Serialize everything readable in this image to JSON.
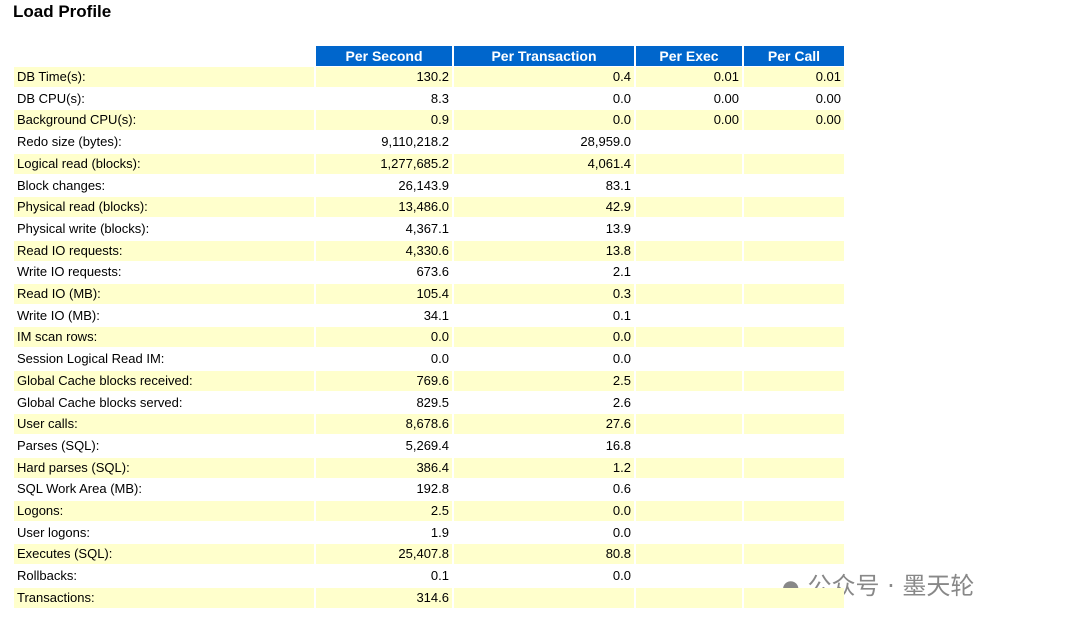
{
  "header": {
    "title": "Load Profile"
  },
  "table": {
    "columns": [
      "Per Second",
      "Per Transaction",
      "Per Exec",
      "Per Call"
    ],
    "rows": [
      {
        "label": "DB Time(s):",
        "values": [
          "130.2",
          "0.4",
          "0.01",
          "0.01"
        ]
      },
      {
        "label": "DB CPU(s):",
        "values": [
          "8.3",
          "0.0",
          "0.00",
          "0.00"
        ]
      },
      {
        "label": "Background CPU(s):",
        "values": [
          "0.9",
          "0.0",
          "0.00",
          "0.00"
        ]
      },
      {
        "label": "Redo size (bytes):",
        "values": [
          "9,110,218.2",
          "28,959.0"
        ]
      },
      {
        "label": "Logical read (blocks):",
        "values": [
          "1,277,685.2",
          "4,061.4"
        ]
      },
      {
        "label": "Block changes:",
        "values": [
          "26,143.9",
          "83.1"
        ]
      },
      {
        "label": "Physical read (blocks):",
        "values": [
          "13,486.0",
          "42.9"
        ]
      },
      {
        "label": "Physical write (blocks):",
        "values": [
          "4,367.1",
          "13.9"
        ]
      },
      {
        "label": "Read IO requests:",
        "values": [
          "4,330.6",
          "13.8"
        ]
      },
      {
        "label": "Write IO requests:",
        "values": [
          "673.6",
          "2.1"
        ]
      },
      {
        "label": "Read IO (MB):",
        "values": [
          "105.4",
          "0.3"
        ]
      },
      {
        "label": "Write IO (MB):",
        "values": [
          "34.1",
          "0.1"
        ]
      },
      {
        "label": "IM scan rows:",
        "values": [
          "0.0",
          "0.0"
        ]
      },
      {
        "label": "Session Logical Read IM:",
        "values": [
          "0.0",
          "0.0"
        ]
      },
      {
        "label": "Global Cache blocks received:",
        "values": [
          "769.6",
          "2.5"
        ]
      },
      {
        "label": "Global Cache blocks served:",
        "values": [
          "829.5",
          "2.6"
        ]
      },
      {
        "label": "User calls:",
        "values": [
          "8,678.6",
          "27.6"
        ]
      },
      {
        "label": "Parses (SQL):",
        "values": [
          "5,269.4",
          "16.8"
        ]
      },
      {
        "label": "Hard parses (SQL):",
        "values": [
          "386.4",
          "1.2"
        ]
      },
      {
        "label": "SQL Work Area (MB):",
        "values": [
          "192.8",
          "0.6"
        ]
      },
      {
        "label": "Logons:",
        "values": [
          "2.5",
          "0.0"
        ]
      },
      {
        "label": "User logons:",
        "values": [
          "1.9",
          "0.0"
        ]
      },
      {
        "label": "Executes (SQL):",
        "values": [
          "25,407.8",
          "80.8"
        ]
      },
      {
        "label": "Rollbacks:",
        "values": [
          "0.1",
          "0.0"
        ]
      },
      {
        "label": "Transactions:",
        "values": [
          "314.6"
        ]
      }
    ]
  },
  "watermark": "公众号 · 墨天轮"
}
